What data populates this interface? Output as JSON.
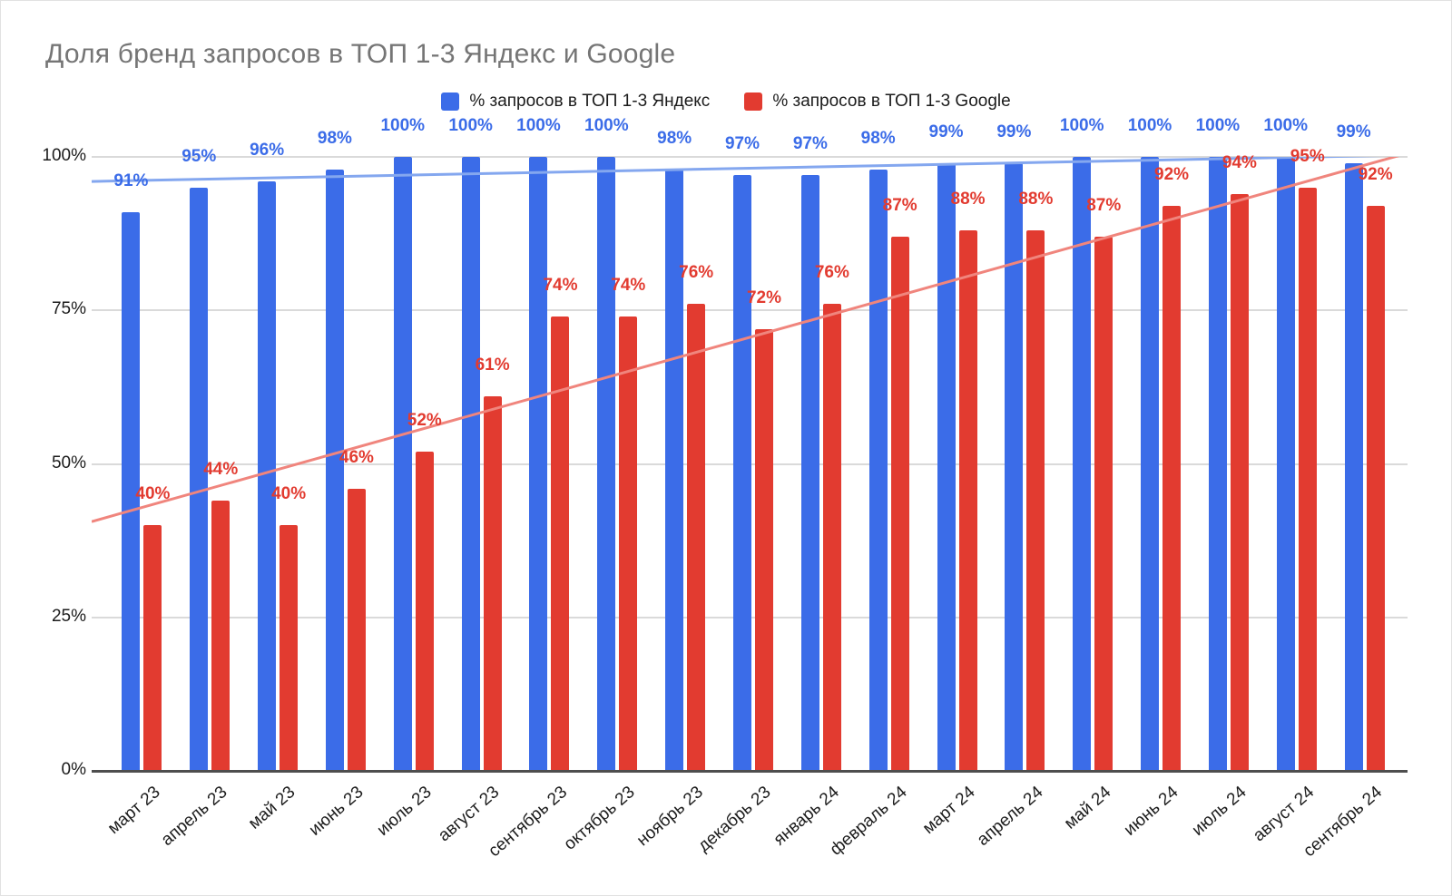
{
  "title": "Доля бренд запросов в ТОП 1-3 Яндекс и Google",
  "chart_data": {
    "type": "bar",
    "title": "Доля бренд запросов в ТОП 1-3 Яндекс и Google",
    "categories": [
      "март 23",
      "апрель 23",
      "май 23",
      "июнь 23",
      "июль 23",
      "август 23",
      "сентябрь 23",
      "октябрь 23",
      "ноябрь 23",
      "декабрь 23",
      "январь 24",
      "февраль 24",
      "март 24",
      "апрель 24",
      "май 24",
      "июнь 24",
      "июль 24",
      "август 24",
      "сентябрь 24"
    ],
    "series": [
      {
        "name": "% запросов в ТОП 1-3 Яндекс",
        "color": "#3B6CE8",
        "values": [
          91,
          95,
          96,
          98,
          100,
          100,
          100,
          100,
          98,
          97,
          97,
          98,
          99,
          99,
          100,
          100,
          100,
          100,
          99
        ],
        "data_labels": [
          "91%",
          "95%",
          "96%",
          "98%",
          "100%",
          "100%",
          "100%",
          "100%",
          "98%",
          "97%",
          "97%",
          "98%",
          "99%",
          "99%",
          "100%",
          "100%",
          "100%",
          "100%",
          "99%"
        ]
      },
      {
        "name": "% запросов в ТОП 1-3 Google",
        "color": "#E23B30",
        "values": [
          40,
          44,
          40,
          46,
          52,
          61,
          74,
          74,
          76,
          72,
          76,
          87,
          88,
          88,
          87,
          92,
          94,
          95,
          92
        ],
        "data_labels": [
          "40%",
          "44%",
          "40%",
          "46%",
          "52%",
          "61%",
          "74%",
          "74%",
          "76%",
          "72%",
          "76%",
          "87%",
          "88%",
          "88%",
          "87%",
          "92%",
          "94%",
          "95%",
          "92%"
        ]
      }
    ],
    "y_axis": {
      "tick_labels": [
        "0%",
        "25%",
        "50%",
        "75%",
        "100%"
      ],
      "tick_values": [
        0,
        25,
        50,
        75,
        100
      ],
      "min": 0,
      "max": 100
    },
    "grid": true,
    "legend_position": "top",
    "trendlines": [
      {
        "series_index": 0,
        "color": "#84A7EF",
        "start_value": 96.0,
        "end_value": 100.3
      },
      {
        "series_index": 1,
        "color": "#F0857D",
        "start_value": 40.6,
        "end_value": 100.6
      }
    ]
  },
  "colors": {
    "yandex": "#3B6CE8",
    "google": "#E23B30",
    "title_text": "#757575",
    "gridline": "#dadada",
    "axis_line": "#4e4e4e"
  }
}
